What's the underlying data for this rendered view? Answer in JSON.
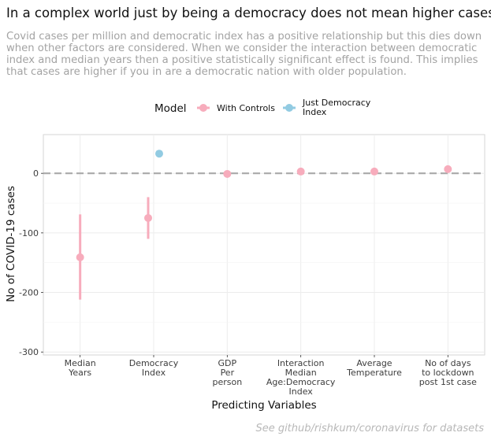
{
  "title": "In a complex world just by being a democracy does not mean higher cases",
  "subtitle": "Covid cases per million and democratic index has a positive relationship but this dies down when other factors are considered. When we consider the interaction between democratic index and median years then a positive statistically significant effect is found. This implies that cases are higher if you in are a democratic nation with older population.",
  "caption": "See github/rishkum/coronavirus for datasets",
  "chart_data": {
    "type": "scatter",
    "subtype": "coefficient plot with error bars",
    "xlabel": "Predicting Variables",
    "ylabel": "No of COVID-19 cases",
    "categories": [
      [
        "Median",
        "Years"
      ],
      [
        "Democracy",
        "Index"
      ],
      [
        "GDP",
        "Per",
        "person"
      ],
      [
        "Interaction",
        "Median",
        "Age:Democracy",
        "Index"
      ],
      [
        "Average",
        "Temperature"
      ],
      [
        "No of days",
        "to lockdown",
        "post 1st case"
      ]
    ],
    "ylim": [
      -305,
      65
    ],
    "yticks": [
      0,
      -100,
      -200,
      -300
    ],
    "reference_line": {
      "y": 0,
      "style": "dashed",
      "color": "#a9a9a9"
    },
    "grid": true,
    "legend": {
      "title": "Model",
      "position": "top",
      "entries": [
        {
          "label": [
            "With Controls"
          ],
          "color": "#f7acbc"
        },
        {
          "label": [
            "Just Democracy",
            "Index"
          ],
          "color": "#92cbe2"
        }
      ]
    },
    "series": [
      {
        "name": "With Controls",
        "color": "#f7acbc",
        "points": [
          {
            "category": 0,
            "estimate": -141,
            "low": -212,
            "high": -69
          },
          {
            "category": 1,
            "estimate": -75,
            "low": -110,
            "high": -40
          },
          {
            "category": 2,
            "estimate": -1,
            "low": -3,
            "high": 1
          },
          {
            "category": 3,
            "estimate": 3,
            "low": 1,
            "high": 5
          },
          {
            "category": 4,
            "estimate": 3,
            "low": 1,
            "high": 5
          },
          {
            "category": 5,
            "estimate": 7,
            "low": 4,
            "high": 10
          }
        ]
      },
      {
        "name": "Just Democracy Index",
        "color": "#92cbe2",
        "points": [
          {
            "category": 1,
            "estimate": 33,
            "low": 29,
            "high": 37
          }
        ]
      }
    ]
  }
}
